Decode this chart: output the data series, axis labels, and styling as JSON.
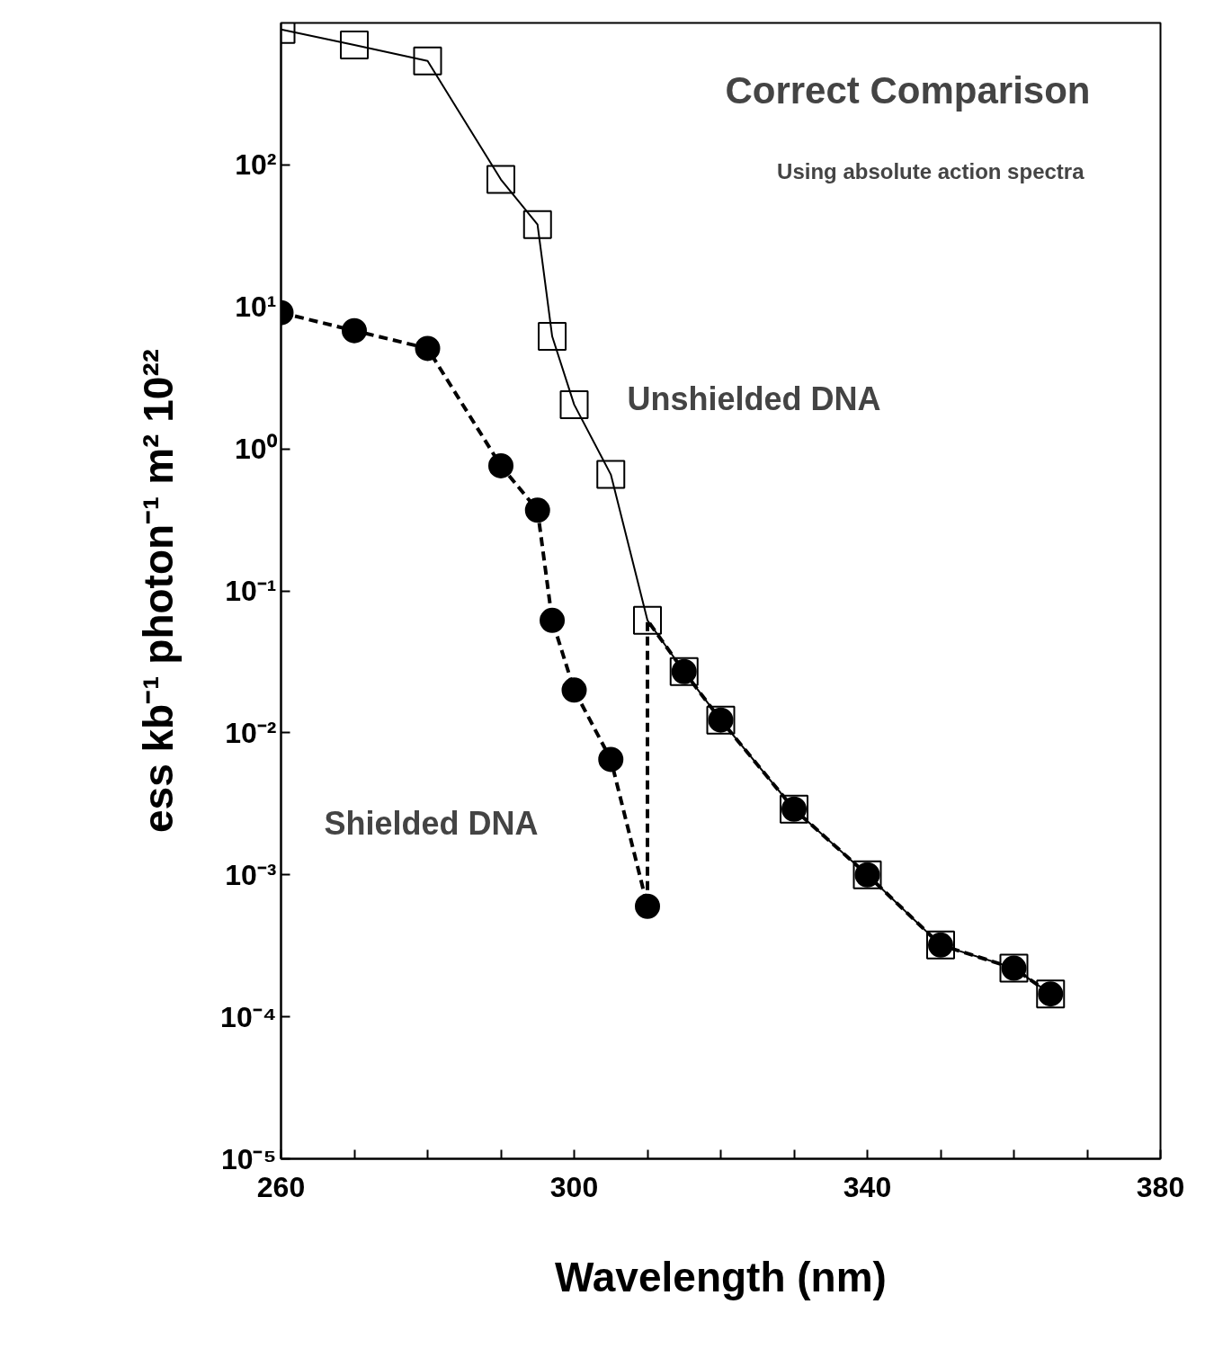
{
  "chart_data": {
    "type": "line",
    "title": "Correct Comparison",
    "subtitle": "Using absolute action spectra",
    "xlabel": "Wavelength (nm)",
    "ylabel": "ess kb⁻¹ photon⁻¹ m² 10²²",
    "log": "y",
    "grid": false,
    "xlim": [
      260,
      380
    ],
    "xticks": [
      260,
      {
        "value": 270,
        "label": null
      },
      {
        "value": 280,
        "label": null
      },
      {
        "value": 290,
        "label": null
      },
      300,
      {
        "value": 310,
        "label": null
      },
      {
        "value": 320,
        "label": null
      },
      {
        "value": 330,
        "label": null
      },
      340,
      {
        "value": 350,
        "label": null
      },
      {
        "value": 360,
        "label": null
      },
      {
        "value": 370,
        "label": null
      },
      380
    ],
    "ylim": [
      1e-05,
      1000
    ],
    "yticks": [
      {
        "value": 1e-05,
        "label": "10⁻⁵"
      },
      {
        "value": 0.0001,
        "label": "10⁻⁴"
      },
      {
        "value": 0.001,
        "label": "10⁻³"
      },
      {
        "value": 0.01,
        "label": "10⁻²"
      },
      {
        "value": 0.1,
        "label": "10⁻¹"
      },
      {
        "value": 1,
        "label": "10⁰"
      },
      {
        "value": 10,
        "label": "10¹"
      },
      {
        "value": 100,
        "label": "10²"
      }
    ],
    "series": [
      {
        "color": "#000000",
        "marker": "square",
        "line_style": "solid",
        "x": [
          260,
          270,
          280,
          290,
          295,
          297,
          300,
          305,
          310,
          315,
          320,
          330,
          340,
          350,
          360,
          365
        ],
        "values": [
          900,
          700,
          540,
          79,
          38,
          6.2,
          2.05,
          0.66,
          0.062,
          0.027,
          0.0123,
          0.0029,
          0.001,
          0.00032,
          0.00022,
          0.000145
        ]
      },
      {
        "type": "line",
        "color": "#000000",
        "marker": "none",
        "line_style": "dashed",
        "x": [
          260,
          270,
          280,
          290,
          295,
          297,
          300,
          305,
          310,
          310,
          315,
          320,
          330,
          340,
          350,
          360,
          365
        ],
        "values": [
          9.1,
          6.8,
          5.1,
          0.76,
          0.37,
          0.062,
          0.02,
          0.0065,
          0.0006,
          0.062,
          0.027,
          0.0123,
          0.0029,
          0.001,
          0.00032,
          0.00022,
          0.000145
        ]
      },
      {
        "type": "scatter",
        "color": "#000000",
        "marker": "circle",
        "x": [
          260,
          270,
          280,
          290,
          295,
          297,
          300,
          305,
          310,
          315,
          320,
          330,
          340,
          350,
          360,
          365
        ],
        "values": [
          9.1,
          6.8,
          5.1,
          0.76,
          0.37,
          0.062,
          0.02,
          0.0065,
          0.0006,
          0.027,
          0.0123,
          0.0029,
          0.001,
          0.00032,
          0.00022,
          0.000145
        ]
      }
    ],
    "annotations": [
      "Unshielded DNA",
      "Shielded DNA"
    ]
  }
}
